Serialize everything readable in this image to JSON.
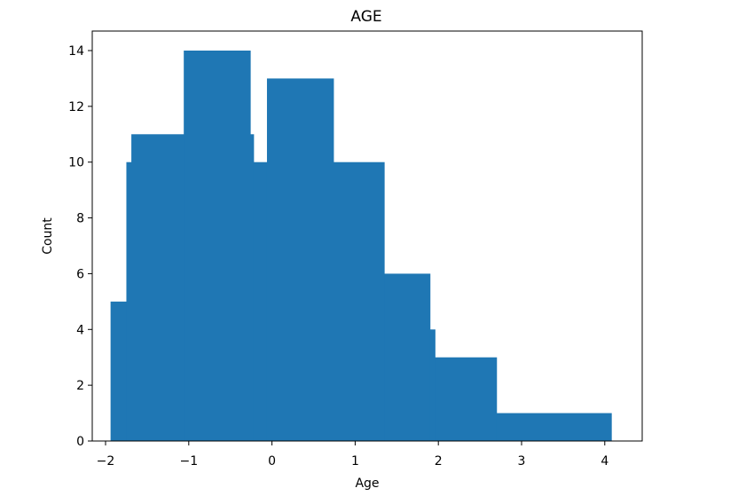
{
  "chart_data": {
    "type": "bar",
    "title": "AGE",
    "xlabel": "Age",
    "ylabel": "Count",
    "xlim": [
      -2.16,
      4.45
    ],
    "ylim": [
      0,
      14.7
    ],
    "xticks": [
      -2,
      -1,
      0,
      1,
      2,
      3,
      4
    ],
    "xtick_labels": [
      "−2",
      "−1",
      "0",
      "1",
      "2",
      "3",
      "4"
    ],
    "yticks": [
      0,
      2,
      4,
      6,
      8,
      10,
      12,
      14
    ],
    "ytick_labels": [
      "0",
      "2",
      "4",
      "6",
      "8",
      "10",
      "12",
      "14"
    ],
    "grid": false,
    "color": "#1f77b4",
    "bins": [
      {
        "x0": -1.94,
        "x1": -1.75,
        "count": 5
      },
      {
        "x0": -1.75,
        "x1": -1.69,
        "count": 10
      },
      {
        "x0": -1.69,
        "x1": -1.06,
        "count": 11
      },
      {
        "x0": -1.06,
        "x1": -0.26,
        "count": 14
      },
      {
        "x0": -0.26,
        "x1": -0.22,
        "count": 11
      },
      {
        "x0": -0.22,
        "x1": -0.06,
        "count": 10
      },
      {
        "x0": -0.06,
        "x1": 0.74,
        "count": 13
      },
      {
        "x0": 0.74,
        "x1": 1.35,
        "count": 10
      },
      {
        "x0": 1.35,
        "x1": 1.9,
        "count": 6
      },
      {
        "x0": 1.9,
        "x1": 1.96,
        "count": 4
      },
      {
        "x0": 1.96,
        "x1": 2.7,
        "count": 3
      },
      {
        "x0": 2.7,
        "x1": 4.08,
        "count": 1
      }
    ]
  }
}
